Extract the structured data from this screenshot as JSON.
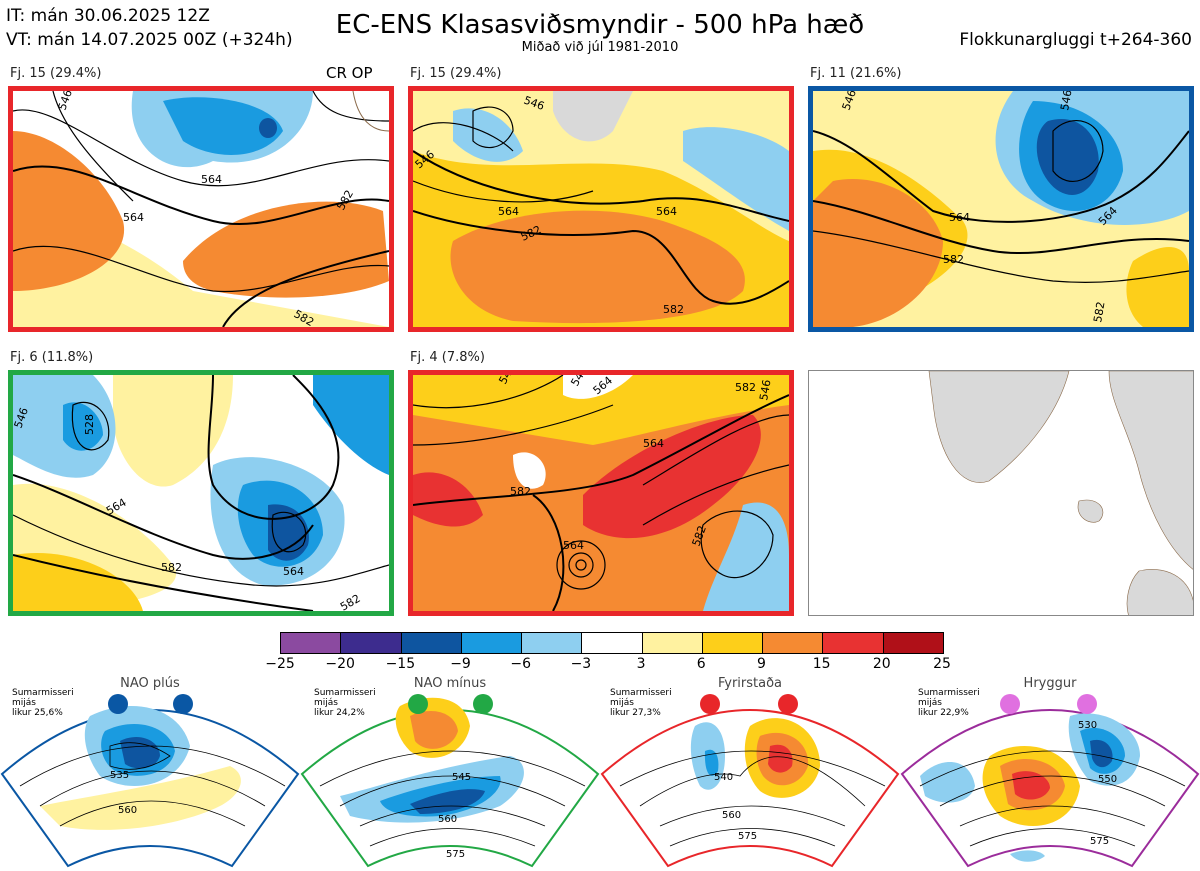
{
  "header": {
    "it_line": "IT: mán 30.06.2025 12Z",
    "vt_line": "VT: mán 14.07.2025 00Z  (+324h)",
    "title": "EC-ENS Klasasviðsmyndir - 500 hPa hæð",
    "subtitle": "Miðað við júl 1981-2010",
    "window": "Flokkunargluggi t+264-360"
  },
  "panels": [
    {
      "label": "Fj. 15 (29.4%)",
      "tag": "CR OP",
      "border": "#e8262a",
      "contours": [
        "546",
        "564",
        "564",
        "582",
        "582"
      ]
    },
    {
      "label": "Fj. 15 (29.4%)",
      "border": "#e8262a",
      "contours": [
        "546",
        "546",
        "564",
        "582",
        "582",
        "564"
      ]
    },
    {
      "label": "Fj. 11 (21.6%)",
      "border": "#0a57a4",
      "contours": [
        "546",
        "564",
        "546",
        "564",
        "582",
        "582"
      ]
    },
    {
      "label": "Fj. 6 (11.8%)",
      "border": "#22a845",
      "contours": [
        "546",
        "528",
        "564",
        "564",
        "582",
        "582"
      ]
    },
    {
      "label": "Fj. 4 (7.8%)",
      "border": "#e8262a",
      "contours": [
        "546",
        "546",
        "564",
        "582",
        "582",
        "564",
        "582",
        "546",
        "564"
      ]
    }
  ],
  "colorbar": {
    "colors": [
      "#8b4aa0",
      "#3d2c8e",
      "#0e55a0",
      "#1a9be0",
      "#8ecff0",
      "#ffffff",
      "#fff2a0",
      "#fdcf1a",
      "#f58a32",
      "#e83232",
      "#b01018"
    ],
    "ticks": [
      "−25",
      "−20",
      "−15",
      "−9",
      "−6",
      "−3",
      "3",
      "6",
      "9",
      "15",
      "20",
      "25"
    ]
  },
  "regimes": [
    {
      "name": "NAO plús",
      "season": "Sumarmisseri",
      "mean": "mijás",
      "prob": "likur 25,6%",
      "color": "#0a57a4",
      "contours": [
        "535",
        "560"
      ]
    },
    {
      "name": "NAO mínus",
      "season": "Sumarmisseri",
      "mean": "mijás",
      "prob": "likur 24,2%",
      "color": "#22a845",
      "contours": [
        "545",
        "560",
        "575"
      ]
    },
    {
      "name": "Fyrirstaða",
      "season": "Sumarmisseri",
      "mean": "mijás",
      "prob": "likur 27,3%",
      "color": "#e8262a",
      "contours": [
        "540",
        "560",
        "575"
      ]
    },
    {
      "name": "Hryggur",
      "season": "Sumarmisseri",
      "mean": "mijás",
      "prob": "likur 22,9%",
      "color": "#e070e0",
      "contours": [
        "530",
        "550",
        "575"
      ]
    }
  ]
}
